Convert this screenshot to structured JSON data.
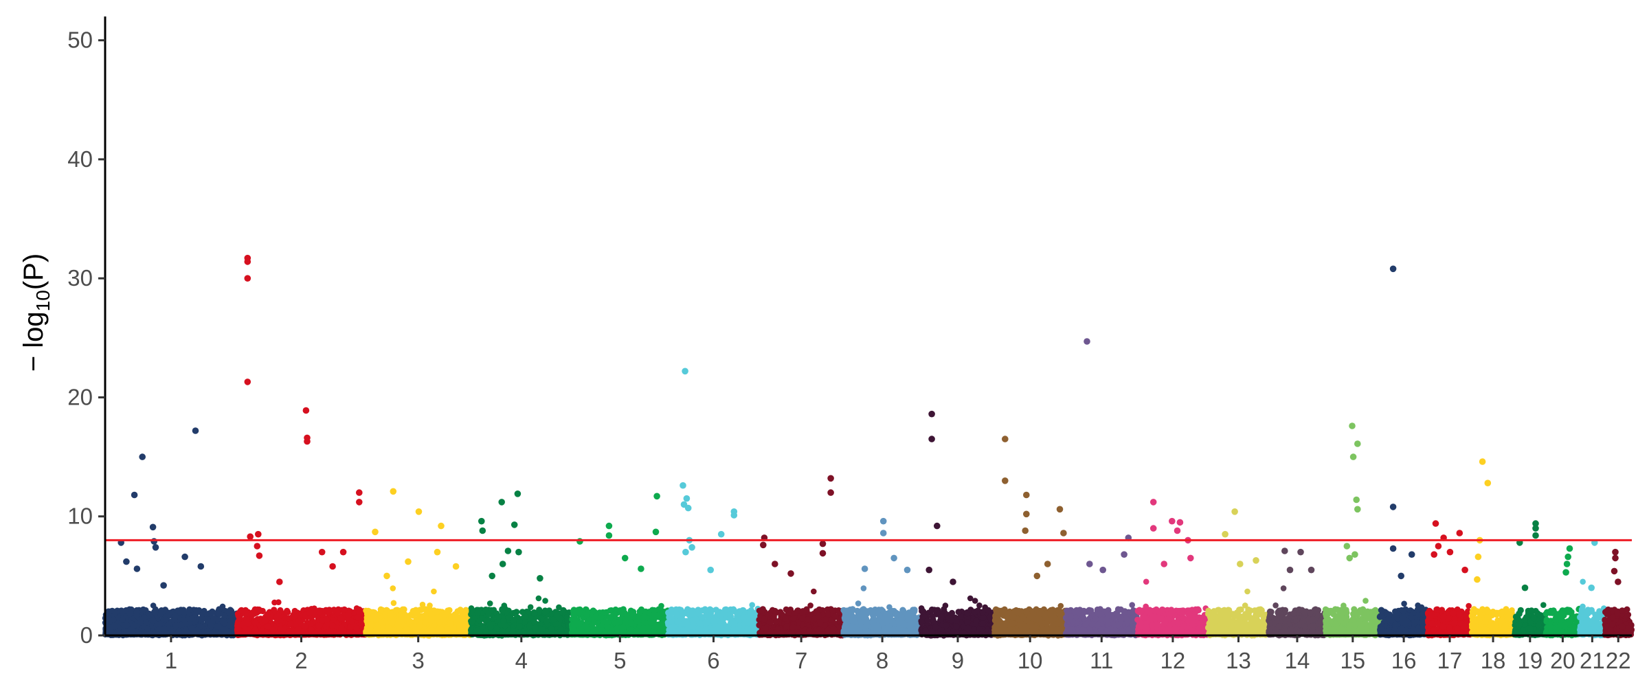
{
  "chart_data": {
    "type": "scatter",
    "subtype": "manhattan",
    "title": "",
    "xlabel": "",
    "ylabel_parts": [
      "− log",
      "10",
      "(P)"
    ],
    "ylim": [
      0,
      52
    ],
    "yticks": [
      0,
      10,
      20,
      30,
      40,
      50
    ],
    "significance_threshold": 8.0,
    "threshold_color": "#ee1c25",
    "grid": false,
    "legend": "none",
    "chromosomes": [
      {
        "label": "1",
        "color": "#223c6a",
        "start": 0,
        "end": 248,
        "top": [
          [
            30,
            7.8
          ],
          [
            55,
            11.8
          ],
          [
            70,
            15.0
          ],
          [
            90,
            9.1
          ],
          [
            92,
            7.9
          ],
          [
            95,
            7.4
          ],
          [
            170,
            17.2
          ],
          [
            40,
            6.2
          ],
          [
            150,
            6.6
          ],
          [
            180,
            5.8
          ],
          [
            110,
            4.2
          ],
          [
            60,
            5.6
          ]
        ]
      },
      {
        "label": "2",
        "color": "#d6101f",
        "start": 248,
        "end": 490,
        "top": [
          [
            20,
            31.7
          ],
          [
            20,
            31.4
          ],
          [
            20,
            30.0
          ],
          [
            20,
            21.3
          ],
          [
            25,
            8.3
          ],
          [
            40,
            8.5
          ],
          [
            38,
            7.5
          ],
          [
            42,
            6.7
          ],
          [
            130,
            18.9
          ],
          [
            132,
            16.6
          ],
          [
            132,
            16.3
          ],
          [
            160,
            7.0
          ],
          [
            200,
            7.0
          ],
          [
            230,
            12.0
          ],
          [
            230,
            11.2
          ],
          [
            80,
            4.5
          ],
          [
            180,
            5.8
          ]
        ]
      },
      {
        "label": "3",
        "color": "#fdd022",
        "start": 490,
        "end": 688,
        "top": [
          [
            18,
            8.7
          ],
          [
            52,
            12.1
          ],
          [
            100,
            10.4
          ],
          [
            142,
            9.2
          ],
          [
            135,
            7.0
          ],
          [
            80,
            6.2
          ],
          [
            170,
            5.8
          ],
          [
            40,
            5.0
          ]
        ]
      },
      {
        "label": "4",
        "color": "#078144",
        "start": 688,
        "end": 878,
        "top": [
          [
            20,
            9.6
          ],
          [
            22,
            8.8
          ],
          [
            58,
            11.2
          ],
          [
            88,
            11.9
          ],
          [
            82,
            9.3
          ],
          [
            70,
            7.1
          ],
          [
            90,
            7.0
          ],
          [
            60,
            6.0
          ],
          [
            40,
            5.0
          ],
          [
            130,
            4.8
          ]
        ]
      },
      {
        "label": "5",
        "color": "#0eaa4e",
        "start": 878,
        "end": 1059,
        "top": [
          [
            15,
            7.9
          ],
          [
            70,
            9.2
          ],
          [
            70,
            8.4
          ],
          [
            160,
            11.7
          ],
          [
            158,
            8.7
          ],
          [
            100,
            6.5
          ],
          [
            130,
            5.6
          ]
        ]
      },
      {
        "label": "6",
        "color": "#56cad9",
        "start": 1059,
        "end": 1230,
        "top": [
          [
            32,
            22.2
          ],
          [
            28,
            12.6
          ],
          [
            35,
            11.5
          ],
          [
            30,
            11.0
          ],
          [
            38,
            10.7
          ],
          [
            124,
            10.4
          ],
          [
            124,
            10.1
          ],
          [
            100,
            8.5
          ],
          [
            40,
            8.0
          ],
          [
            45,
            7.4
          ],
          [
            33,
            7.0
          ],
          [
            80,
            5.5
          ]
        ]
      },
      {
        "label": "7",
        "color": "#7e1126",
        "start": 1230,
        "end": 1389,
        "top": [
          [
            10,
            8.2
          ],
          [
            8,
            7.6
          ],
          [
            120,
            7.7
          ],
          [
            120,
            6.9
          ],
          [
            135,
            13.2
          ],
          [
            135,
            12.0
          ],
          [
            30,
            6.0
          ],
          [
            60,
            5.2
          ]
        ]
      },
      {
        "label": "8",
        "color": "#6094bf",
        "start": 1389,
        "end": 1535,
        "top": [
          [
            75,
            9.6
          ],
          [
            75,
            8.6
          ],
          [
            95,
            6.5
          ],
          [
            40,
            5.6
          ],
          [
            120,
            5.5
          ]
        ]
      },
      {
        "label": "9",
        "color": "#3e1535",
        "start": 1535,
        "end": 1673,
        "top": [
          [
            20,
            18.6
          ],
          [
            20,
            16.5
          ],
          [
            30,
            9.2
          ],
          [
            15,
            5.5
          ],
          [
            60,
            4.5
          ]
        ]
      },
      {
        "label": "10",
        "color": "#8e6030",
        "start": 1673,
        "end": 1807,
        "top": [
          [
            20,
            16.5
          ],
          [
            20,
            13.0
          ],
          [
            60,
            11.8
          ],
          [
            60,
            10.2
          ],
          [
            58,
            8.8
          ],
          [
            123,
            10.6
          ],
          [
            130,
            8.6
          ],
          [
            100,
            6.0
          ],
          [
            80,
            5.0
          ]
        ]
      },
      {
        "label": "11",
        "color": "#6e5790",
        "start": 1807,
        "end": 1942,
        "top": [
          [
            40,
            24.7
          ],
          [
            118,
            8.2
          ],
          [
            45,
            6.0
          ],
          [
            70,
            5.5
          ],
          [
            110,
            6.8
          ]
        ]
      },
      {
        "label": "12",
        "color": "#e2387c",
        "start": 1942,
        "end": 2075,
        "top": [
          [
            30,
            11.2
          ],
          [
            30,
            9.0
          ],
          [
            65,
            9.6
          ],
          [
            80,
            9.5
          ],
          [
            75,
            8.8
          ],
          [
            95,
            8.0
          ],
          [
            50,
            6.0
          ],
          [
            100,
            6.5
          ]
        ]
      },
      {
        "label": "13",
        "color": "#d8d258",
        "start": 2075,
        "end": 2189,
        "top": [
          [
            50,
            10.4
          ],
          [
            32,
            8.5
          ],
          [
            60,
            6.0
          ],
          [
            90,
            6.3
          ]
        ]
      },
      {
        "label": "14",
        "color": "#5f465c",
        "start": 2189,
        "end": 2296,
        "top": [
          [
            30,
            7.1
          ],
          [
            60,
            7.0
          ],
          [
            40,
            5.5
          ],
          [
            80,
            5.5
          ]
        ]
      },
      {
        "label": "15",
        "color": "#7dc460",
        "start": 2296,
        "end": 2398,
        "top": [
          [
            50,
            17.6
          ],
          [
            52,
            15.0
          ],
          [
            60,
            16.1
          ],
          [
            58,
            11.4
          ],
          [
            60,
            10.6
          ],
          [
            40,
            7.5
          ],
          [
            45,
            6.5
          ],
          [
            55,
            6.8
          ]
        ]
      },
      {
        "label": "16",
        "color": "#223c6a",
        "start": 2398,
        "end": 2488,
        "top": [
          [
            25,
            30.8
          ],
          [
            25,
            10.8
          ],
          [
            25,
            7.3
          ],
          [
            60,
            6.8
          ],
          [
            40,
            5.0
          ]
        ]
      },
      {
        "label": "17",
        "color": "#d6101f",
        "start": 2488,
        "end": 2571,
        "top": [
          [
            15,
            9.4
          ],
          [
            30,
            8.2
          ],
          [
            42,
            7.0
          ],
          [
            60,
            8.6
          ],
          [
            12,
            6.8
          ],
          [
            20,
            7.5
          ],
          [
            70,
            5.5
          ]
        ]
      },
      {
        "label": "18",
        "color": "#fdd022",
        "start": 2571,
        "end": 2651,
        "top": [
          [
            20,
            14.6
          ],
          [
            30,
            12.8
          ],
          [
            15,
            8.0
          ],
          [
            12,
            6.6
          ],
          [
            10,
            4.7
          ]
        ]
      },
      {
        "label": "19",
        "color": "#078144",
        "start": 2651,
        "end": 2710,
        "top": [
          [
            40,
            9.4
          ],
          [
            40,
            9.0
          ],
          [
            40,
            8.4
          ],
          [
            10,
            7.8
          ],
          [
            20,
            4.0
          ]
        ]
      },
      {
        "label": "20",
        "color": "#0eaa4e",
        "start": 2710,
        "end": 2774,
        "top": [
          [
            45,
            7.3
          ],
          [
            42,
            6.6
          ],
          [
            40,
            6.0
          ],
          [
            38,
            5.3
          ]
        ]
      },
      {
        "label": "21",
        "color": "#56cad9",
        "start": 2774,
        "end": 2821,
        "top": [
          [
            28,
            7.8
          ],
          [
            22,
            4.0
          ]
        ]
      },
      {
        "label": "22",
        "color": "#7e1126",
        "start": 2821,
        "end": 2872,
        "top": [
          [
            20,
            7.0
          ],
          [
            20,
            6.5
          ],
          [
            18,
            5.4
          ],
          [
            25,
            4.5
          ]
        ]
      }
    ]
  }
}
